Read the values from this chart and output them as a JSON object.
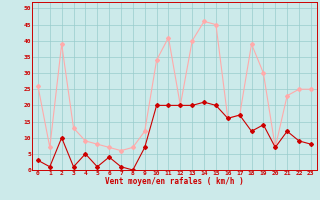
{
  "x": [
    0,
    1,
    2,
    3,
    4,
    5,
    6,
    7,
    8,
    9,
    10,
    11,
    12,
    13,
    14,
    15,
    16,
    17,
    18,
    19,
    20,
    21,
    22,
    23
  ],
  "rafales": [
    26,
    7,
    39,
    13,
    9,
    8,
    7,
    6,
    7,
    12,
    34,
    41,
    20,
    40,
    46,
    45,
    16,
    17,
    39,
    30,
    7,
    23,
    25,
    25
  ],
  "moyen": [
    3,
    1,
    10,
    1,
    5,
    1,
    4,
    1,
    0,
    7,
    20,
    20,
    20,
    20,
    21,
    20,
    16,
    17,
    12,
    14,
    7,
    12,
    9,
    8
  ],
  "color_rafales": "#ffaaaa",
  "color_moyen": "#cc0000",
  "bg_color": "#cceaea",
  "grid_color": "#99cccc",
  "xlabel": "Vent moyen/en rafales ( km/h )",
  "ylabel_ticks": [
    0,
    5,
    10,
    15,
    20,
    25,
    30,
    35,
    40,
    45,
    50
  ],
  "ylim": [
    0,
    52
  ],
  "xlim": [
    -0.5,
    23.5
  ]
}
